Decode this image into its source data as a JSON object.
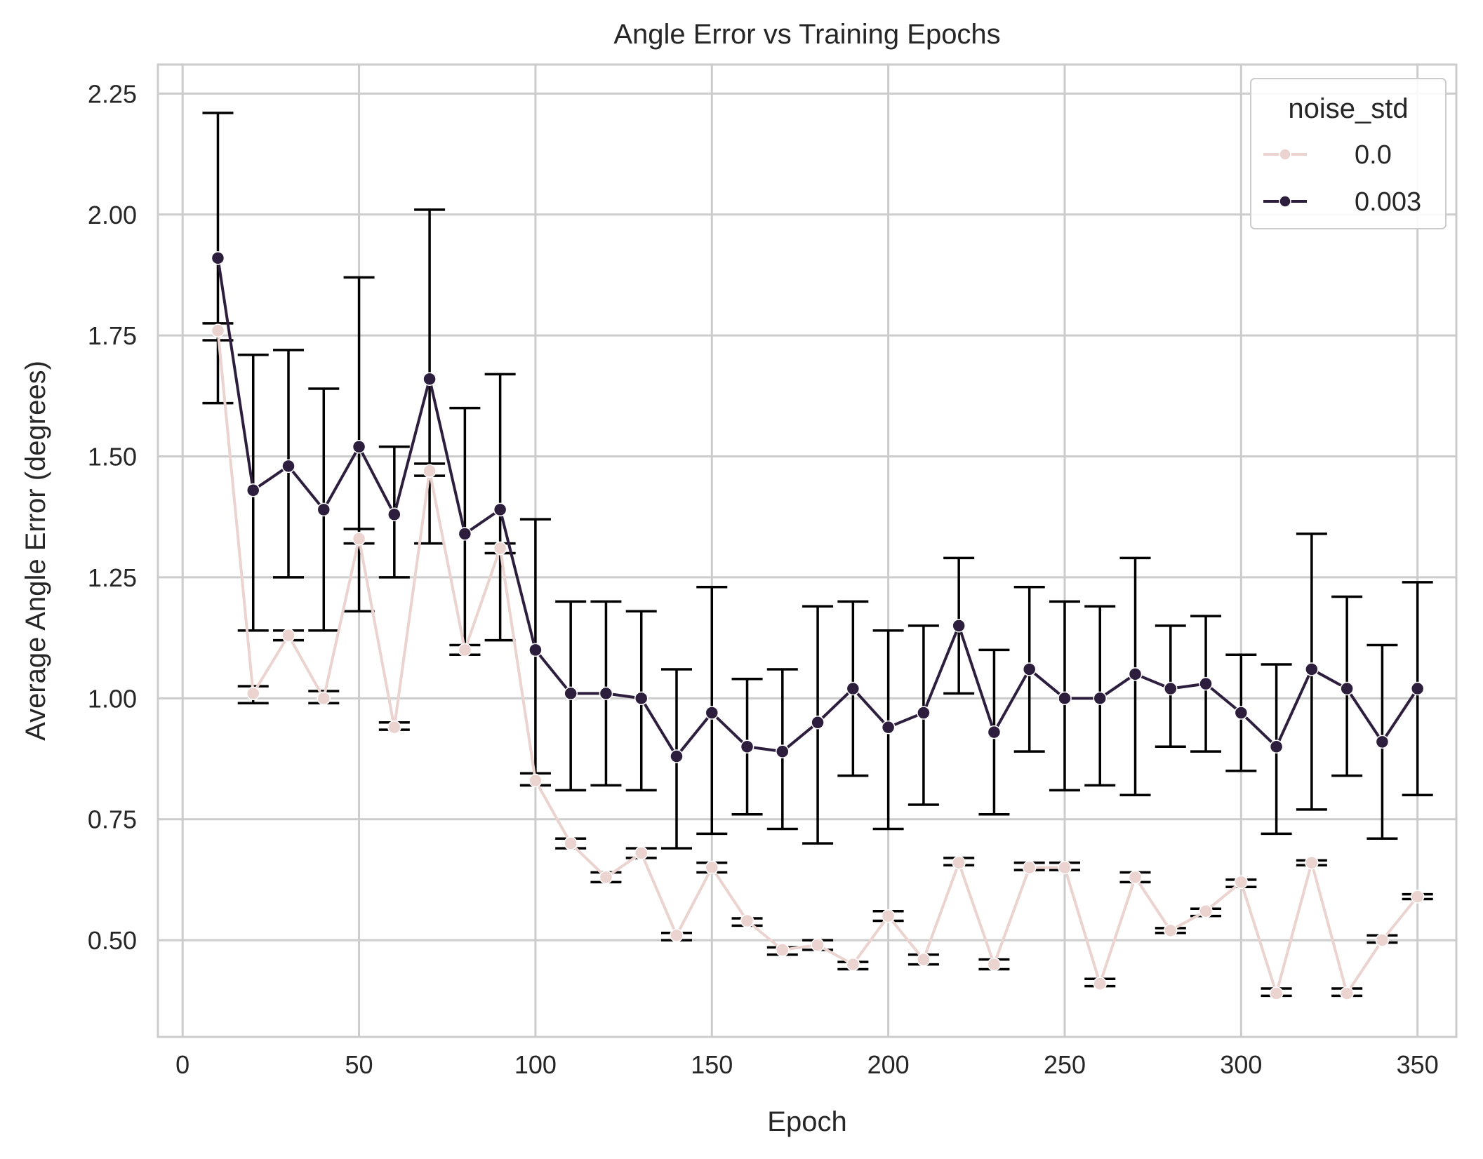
{
  "chart_data": {
    "type": "line",
    "title": "Angle Error vs Training Epochs",
    "xlabel": "Epoch",
    "ylabel": "Average Angle Error (degrees)",
    "xlim": [
      -7,
      361
    ],
    "ylim": [
      0.3,
      2.31
    ],
    "xticks": [
      0,
      50,
      100,
      150,
      200,
      250,
      300,
      350
    ],
    "yticks": [
      0.5,
      0.75,
      1.0,
      1.25,
      1.5,
      1.75,
      2.0,
      2.25
    ],
    "ytick_labels": [
      "0.50",
      "0.75",
      "1.00",
      "1.25",
      "1.50",
      "1.75",
      "2.00",
      "2.25"
    ],
    "grid": true,
    "legend": {
      "title": "noise_std",
      "position": "top-right"
    },
    "x": [
      10,
      20,
      30,
      40,
      50,
      60,
      70,
      80,
      90,
      100,
      110,
      120,
      130,
      140,
      150,
      160,
      170,
      180,
      190,
      200,
      210,
      220,
      230,
      240,
      250,
      260,
      270,
      280,
      290,
      300,
      310,
      320,
      330,
      340,
      350
    ],
    "series": [
      {
        "name": "0.0",
        "color": "#ebd3cf",
        "values": [
          1.76,
          1.01,
          1.13,
          1.0,
          1.33,
          0.94,
          1.47,
          1.1,
          1.31,
          0.83,
          0.7,
          0.63,
          0.68,
          0.51,
          0.65,
          0.54,
          0.48,
          0.49,
          0.45,
          0.55,
          0.46,
          0.66,
          0.45,
          0.65,
          0.65,
          0.41,
          0.63,
          0.52,
          0.56,
          0.62,
          0.39,
          0.66,
          0.39,
          0.5,
          0.59
        ],
        "err_low": [
          1.74,
          0.99,
          1.12,
          0.99,
          1.32,
          0.935,
          1.46,
          1.09,
          1.3,
          0.82,
          0.69,
          0.62,
          0.67,
          0.5,
          0.64,
          0.53,
          0.47,
          0.48,
          0.44,
          0.54,
          0.45,
          0.655,
          0.44,
          0.645,
          0.645,
          0.405,
          0.62,
          0.515,
          0.55,
          0.61,
          0.385,
          0.655,
          0.385,
          0.495,
          0.585
        ],
        "err_high": [
          1.775,
          1.025,
          1.14,
          1.015,
          1.35,
          0.95,
          1.485,
          1.11,
          1.32,
          0.845,
          0.71,
          0.64,
          0.69,
          0.515,
          0.66,
          0.545,
          0.485,
          0.5,
          0.455,
          0.56,
          0.47,
          0.67,
          0.46,
          0.66,
          0.66,
          0.42,
          0.64,
          0.525,
          0.565,
          0.625,
          0.4,
          0.665,
          0.4,
          0.51,
          0.595
        ]
      },
      {
        "name": "0.003",
        "color": "#2d1e3e",
        "values": [
          1.91,
          1.43,
          1.48,
          1.39,
          1.52,
          1.38,
          1.66,
          1.34,
          1.39,
          1.1,
          1.01,
          1.01,
          1.0,
          0.88,
          0.97,
          0.9,
          0.89,
          0.95,
          1.02,
          0.94,
          0.97,
          1.15,
          0.93,
          1.06,
          1.0,
          1.0,
          1.05,
          1.02,
          1.03,
          0.97,
          0.9,
          1.06,
          1.02,
          0.91,
          1.02
        ],
        "err_low": [
          1.61,
          1.14,
          1.25,
          1.14,
          1.18,
          1.25,
          1.32,
          1.09,
          1.12,
          0.82,
          0.81,
          0.82,
          0.81,
          0.69,
          0.72,
          0.76,
          0.73,
          0.7,
          0.84,
          0.73,
          0.78,
          1.01,
          0.76,
          0.89,
          0.81,
          0.82,
          0.8,
          0.9,
          0.89,
          0.85,
          0.72,
          0.77,
          0.84,
          0.71,
          0.8
        ],
        "err_high": [
          2.21,
          1.71,
          1.72,
          1.64,
          1.87,
          1.52,
          2.01,
          1.6,
          1.67,
          1.37,
          1.2,
          1.2,
          1.18,
          1.06,
          1.23,
          1.04,
          1.06,
          1.19,
          1.2,
          1.14,
          1.15,
          1.29,
          1.1,
          1.23,
          1.2,
          1.19,
          1.29,
          1.15,
          1.17,
          1.09,
          1.07,
          1.34,
          1.21,
          1.11,
          1.24
        ]
      }
    ]
  }
}
